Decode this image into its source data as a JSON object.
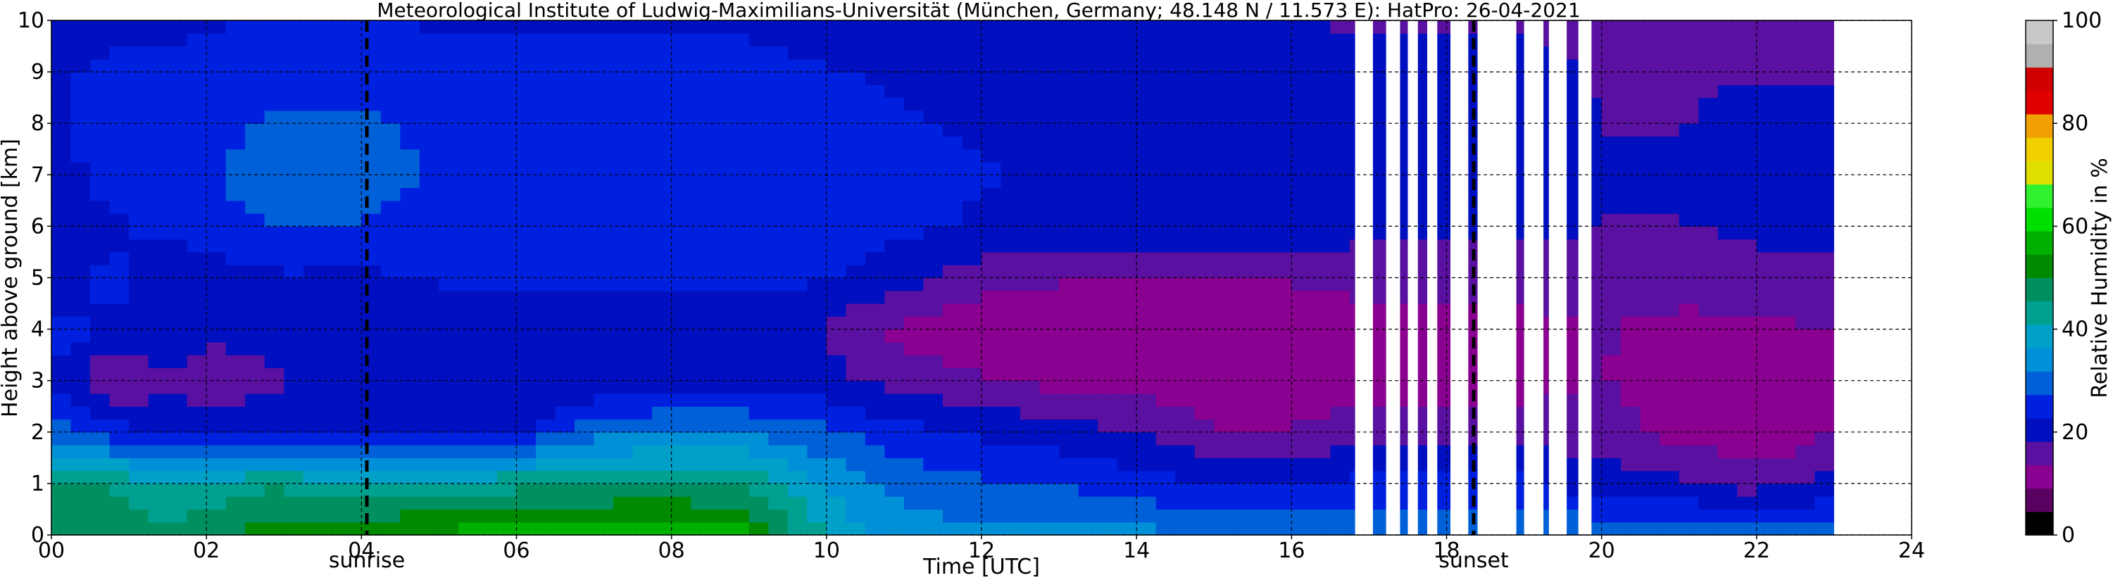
{
  "chart_data": {
    "type": "heatmap",
    "title": "Meteorological Institute of Ludwig-Maximilians-Universität (München, Germany; 48.148 N / 11.573 E):    HatPro: 26-04-2021",
    "xlabel": "Time [UTC]",
    "ylabel": "Height above ground [km]",
    "xlim": [
      0,
      24
    ],
    "ylim": [
      0,
      10
    ],
    "x_ticks": [
      "00",
      "02",
      "04",
      "06",
      "08",
      "10",
      "12",
      "14",
      "16",
      "18",
      "20",
      "22",
      "24"
    ],
    "y_ticks": [
      "0",
      "1",
      "2",
      "3",
      "4",
      "5",
      "6",
      "7",
      "8",
      "9",
      "10"
    ],
    "grid": true,
    "data_end_hour": 23.0,
    "colorbar": {
      "label": "Relative Humidity in %",
      "range": [
        0,
        100
      ],
      "ticks": [
        "0",
        "20",
        "40",
        "60",
        "80",
        "100"
      ],
      "colors": [
        "#000000",
        "#5a0060",
        "#8a0090",
        "#5a10a0",
        "#0010c0",
        "#0020e0",
        "#0060d8",
        "#0090d8",
        "#00a0c8",
        "#00a090",
        "#009060",
        "#008a00",
        "#00b000",
        "#00e000",
        "#30f030",
        "#e0e000",
        "#f0d000",
        "#f0a000",
        "#e00000",
        "#d00000",
        "#b0b0b0",
        "#c8c8c8"
      ]
    },
    "annotations": [
      {
        "text": "sunrise",
        "hour": 4.07
      },
      {
        "text": "sunset",
        "hour": 18.35
      }
    ],
    "missing_data_gaps_hours": [
      [
        16.82,
        17.05
      ],
      [
        17.22,
        17.4
      ],
      [
        17.5,
        17.63
      ],
      [
        17.75,
        17.88
      ],
      [
        18.05,
        18.28
      ],
      [
        18.4,
        18.9
      ],
      [
        19.0,
        19.25
      ],
      [
        19.32,
        19.55
      ],
      [
        19.7,
        19.87
      ]
    ],
    "profiles": [
      {
        "hour": 0.0,
        "rh": [
          45,
          48,
          30,
          22,
          25,
          18,
          19,
          21,
          22,
          22,
          20
        ]
      },
      {
        "hour": 0.75,
        "rh": [
          48,
          45,
          25,
          13,
          22,
          24,
          22,
          24,
          25,
          24,
          21
        ]
      },
      {
        "hour": 1.5,
        "rh": [
          46,
          42,
          20,
          18,
          21,
          20,
          24,
          25,
          25,
          24,
          21
        ]
      },
      {
        "hour": 2.0,
        "rh": [
          50,
          42,
          22,
          14,
          20,
          20,
          25,
          27,
          26,
          25,
          22
        ]
      },
      {
        "hour": 3.0,
        "rh": [
          52,
          45,
          22,
          18,
          20,
          22,
          28,
          30,
          28,
          26,
          23
        ]
      },
      {
        "hour": 4.0,
        "rh": [
          55,
          40,
          20,
          18,
          20,
          22,
          27,
          29,
          28,
          26,
          23
        ]
      },
      {
        "hour": 5.0,
        "rh": [
          56,
          42,
          22,
          19,
          20,
          23,
          26,
          27,
          26,
          25,
          22
        ]
      },
      {
        "hour": 6.0,
        "rh": [
          57,
          44,
          22,
          18,
          20,
          24,
          26,
          27,
          26,
          25,
          22
        ]
      },
      {
        "hour": 7.0,
        "rh": [
          58,
          45,
          30,
          19,
          20,
          24,
          26,
          27,
          26,
          25,
          22
        ]
      },
      {
        "hour": 8.0,
        "rh": [
          58,
          46,
          32,
          20,
          20,
          24,
          25,
          26,
          25,
          24,
          22
        ]
      },
      {
        "hour": 9.0,
        "rh": [
          56,
          44,
          32,
          20,
          20,
          24,
          25,
          26,
          25,
          24,
          22
        ]
      },
      {
        "hour": 10.0,
        "rh": [
          40,
          36,
          28,
          20,
          18,
          23,
          25,
          25,
          24,
          23,
          21
        ]
      },
      {
        "hour": 11.0,
        "rh": [
          34,
          30,
          24,
          16,
          12,
          20,
          24,
          24,
          23,
          22,
          20
        ]
      },
      {
        "hour": 12.0,
        "rh": [
          33,
          28,
          22,
          14,
          10,
          16,
          22,
          23,
          22,
          21,
          19
        ]
      },
      {
        "hour": 13.0,
        "rh": [
          33,
          27,
          20,
          12,
          10,
          14,
          21,
          22,
          21,
          20,
          18
        ]
      },
      {
        "hour": 14.0,
        "rh": [
          33,
          25,
          18,
          12,
          10,
          14,
          21,
          22,
          21,
          20,
          18
        ]
      },
      {
        "hour": 15.0,
        "rh": [
          32,
          22,
          14,
          10,
          10,
          14,
          21,
          22,
          21,
          20,
          18
        ]
      },
      {
        "hour": 16.0,
        "rh": [
          32,
          22,
          14,
          10,
          10,
          14,
          21,
          22,
          21,
          20,
          18
        ]
      },
      {
        "hour": 17.0,
        "rh": [
          32,
          24,
          16,
          12,
          12,
          15,
          20,
          21,
          20,
          19,
          18
        ]
      },
      {
        "hour": 18.0,
        "rh": [
          32,
          24,
          16,
          12,
          12,
          15,
          20,
          21,
          20,
          19,
          18
        ]
      },
      {
        "hour": 19.0,
        "rh": [
          32,
          24,
          16,
          12,
          12,
          15,
          20,
          21,
          20,
          19,
          18
        ]
      },
      {
        "hour": 20.0,
        "rh": [
          30,
          20,
          16,
          14,
          14,
          16,
          18,
          19,
          18,
          18,
          17
        ]
      },
      {
        "hour": 21.0,
        "rh": [
          30,
          19,
          12,
          10,
          12,
          16,
          18,
          19,
          18,
          18,
          17
        ]
      },
      {
        "hour": 22.0,
        "rh": [
          30,
          16,
          10,
          10,
          12,
          17,
          19,
          20,
          19,
          18,
          17
        ]
      },
      {
        "hour": 22.5,
        "rh": [
          30,
          18,
          11,
          10,
          13,
          17,
          19,
          20,
          19,
          18,
          17
        ]
      },
      {
        "hour": 23.0,
        "rh": [
          28,
          20,
          14,
          12,
          14,
          17,
          19,
          20,
          19,
          18,
          17
        ]
      }
    ]
  }
}
